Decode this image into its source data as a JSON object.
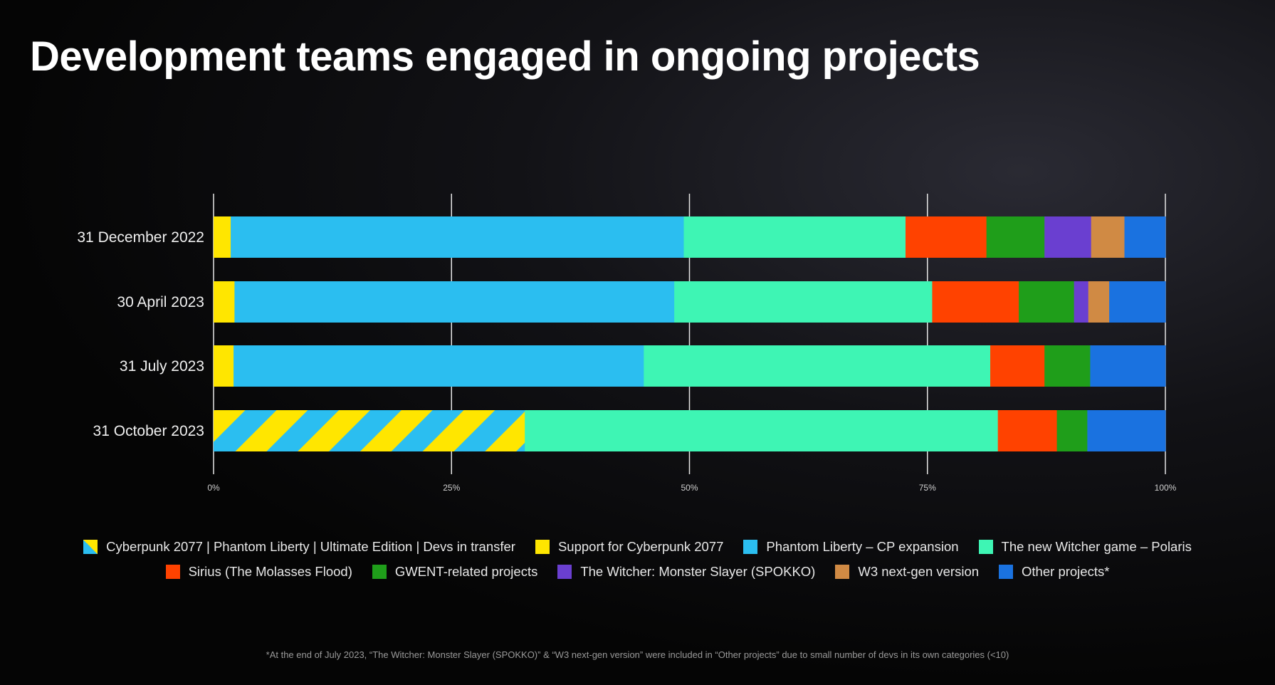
{
  "title": "Development teams engaged in ongoing projects",
  "footnote": "*At the end of July 2023, “The Witcher: Monster Slayer (SPOKKO)” & “W3 next-gen version” were included in “Other projects” due to small number of devs in its own categories (<10)",
  "chart_data": {
    "type": "bar",
    "orientation": "horizontal",
    "stacked": true,
    "normalized": true,
    "title": "Development teams engaged in ongoing projects",
    "categories": [
      "31 December 2022",
      "30 April 2023",
      "31 July 2023",
      "31 October 2023"
    ],
    "xlim": [
      0,
      100
    ],
    "xticks": [
      "0%",
      "25%",
      "50%",
      "75%",
      "100%"
    ],
    "grid": true,
    "legend_position": "bottom",
    "series": [
      {
        "name": "Cyberpunk 2077 | Phantom Liberty | Ultimate Edition | Devs in transfer",
        "color": "hatch:#ffe600/#2bbef0",
        "values": [
          0,
          0,
          0,
          32.7
        ]
      },
      {
        "name": "Support for Cyberpunk 2077",
        "color": "#ffe600",
        "values": [
          1.8,
          2.2,
          2.1,
          0
        ]
      },
      {
        "name": "Phantom Liberty – CP expansion",
        "color": "#2bbef0",
        "values": [
          47.6,
          46.2,
          43.1,
          0
        ]
      },
      {
        "name": "The new Witcher game – Polaris",
        "color": "#3ef5b4",
        "values": [
          23.3,
          27.1,
          36.4,
          49.7
        ]
      },
      {
        "name": "Sirius (The Molasses Flood)",
        "color": "#ff4200",
        "values": [
          8.5,
          9.1,
          5.7,
          6.2
        ]
      },
      {
        "name": "GWENT-related projects",
        "color": "#1f9e1a",
        "values": [
          6.1,
          5.8,
          4.8,
          3.2
        ]
      },
      {
        "name": "The Witcher: Monster Slayer (SPOKKO)",
        "color": "#6a3fd0",
        "values": [
          4.9,
          1.5,
          0,
          0
        ]
      },
      {
        "name": "W3 next-gen version",
        "color": "#d08a44",
        "values": [
          3.5,
          2.2,
          0,
          0
        ]
      },
      {
        "name": "Other projects*",
        "color": "#1a72e0",
        "values": [
          4.3,
          5.9,
          7.9,
          8.2
        ]
      }
    ]
  }
}
